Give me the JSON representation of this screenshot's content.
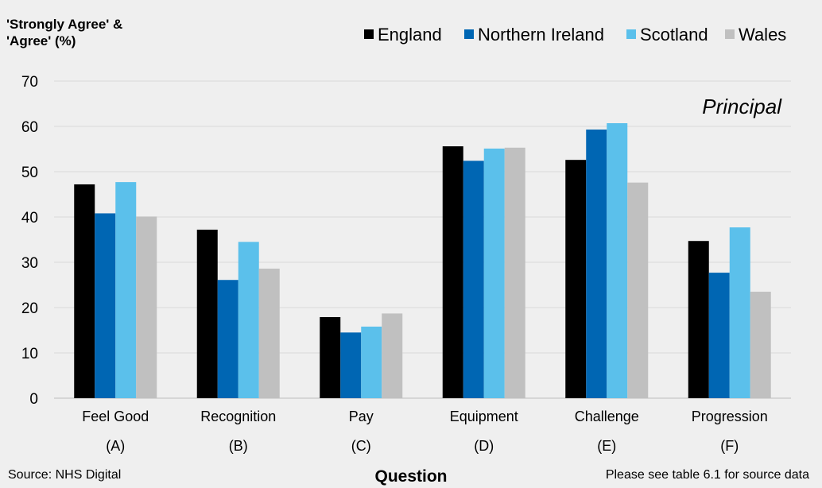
{
  "chart_data": {
    "type": "bar",
    "ylabel_lines": [
      "'Strongly Agree' &",
      "'Agree' (%)"
    ],
    "xlabel": "Question",
    "annotation": "Principal",
    "source_left": "Source: NHS Digital",
    "source_right": "Please see table 6.1 for source data",
    "ylim": [
      0,
      70
    ],
    "yticks": [
      0,
      10,
      20,
      30,
      40,
      50,
      60,
      70
    ],
    "grid": true,
    "legend_position": "top-right",
    "categories": [
      "Feel Good",
      "Recognition",
      "Pay",
      "Equipment",
      "Challenge",
      "Progression"
    ],
    "category_codes": [
      "(A)",
      "(B)",
      "(C)",
      "(D)",
      "(E)",
      "(F)"
    ],
    "series": [
      {
        "name": "England",
        "color": "#000000",
        "values": [
          47.2,
          37.2,
          17.9,
          55.6,
          52.6,
          34.7
        ]
      },
      {
        "name": "Northern Ireland",
        "color": "#0066b3",
        "values": [
          40.8,
          26.1,
          14.5,
          52.4,
          59.3,
          27.7
        ]
      },
      {
        "name": "Scotland",
        "color": "#5bc0eb",
        "values": [
          47.7,
          34.5,
          15.8,
          55.1,
          60.7,
          37.7
        ]
      },
      {
        "name": "Wales",
        "color": "#c0c0c0",
        "values": [
          40.1,
          28.6,
          18.7,
          55.3,
          47.6,
          23.5
        ]
      }
    ]
  }
}
